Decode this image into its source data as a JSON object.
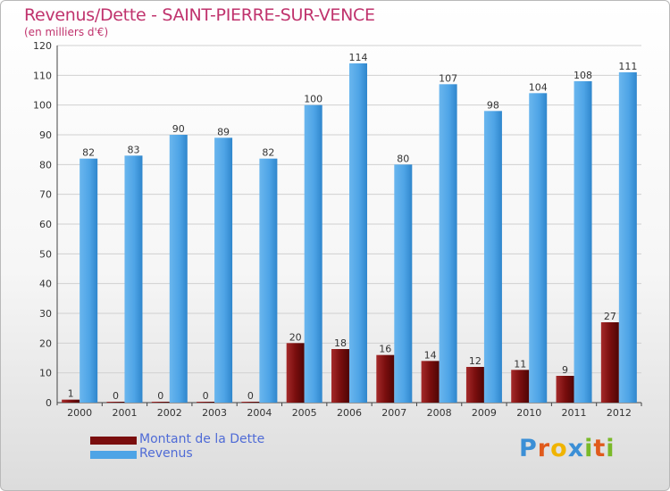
{
  "chart_data": {
    "type": "bar",
    "title": "Revenus/Dette - SAINT-PIERRE-SUR-VENCE",
    "subtitle": "(en milliers d'€)",
    "categories": [
      "2000",
      "2001",
      "2002",
      "2003",
      "2004",
      "2005",
      "2006",
      "2007",
      "2008",
      "2009",
      "2010",
      "2011",
      "2012"
    ],
    "series": [
      {
        "name": "Montant de la Dette",
        "color": "#7a0e0e",
        "values": [
          1,
          0,
          0,
          0,
          0,
          20,
          18,
          16,
          14,
          12,
          11,
          9,
          27
        ]
      },
      {
        "name": "Revenus",
        "color": "#4ea4e6",
        "values": [
          82,
          83,
          90,
          89,
          82,
          100,
          114,
          80,
          107,
          98,
          104,
          108,
          111
        ]
      }
    ],
    "ylim": [
      0,
      120
    ],
    "yticks": [
      0,
      10,
      20,
      30,
      40,
      50,
      60,
      70,
      80,
      90,
      100,
      110,
      120
    ],
    "grid": true,
    "legend_position": "bottom-left"
  },
  "logo": {
    "letters": [
      "P",
      "r",
      "o",
      "x",
      "i",
      "t",
      "i"
    ],
    "colors": [
      "#3b8fd6",
      "#e05a1c",
      "#f0b400",
      "#3b8fd6",
      "#7ab929",
      "#e05a1c",
      "#7ab929"
    ]
  }
}
